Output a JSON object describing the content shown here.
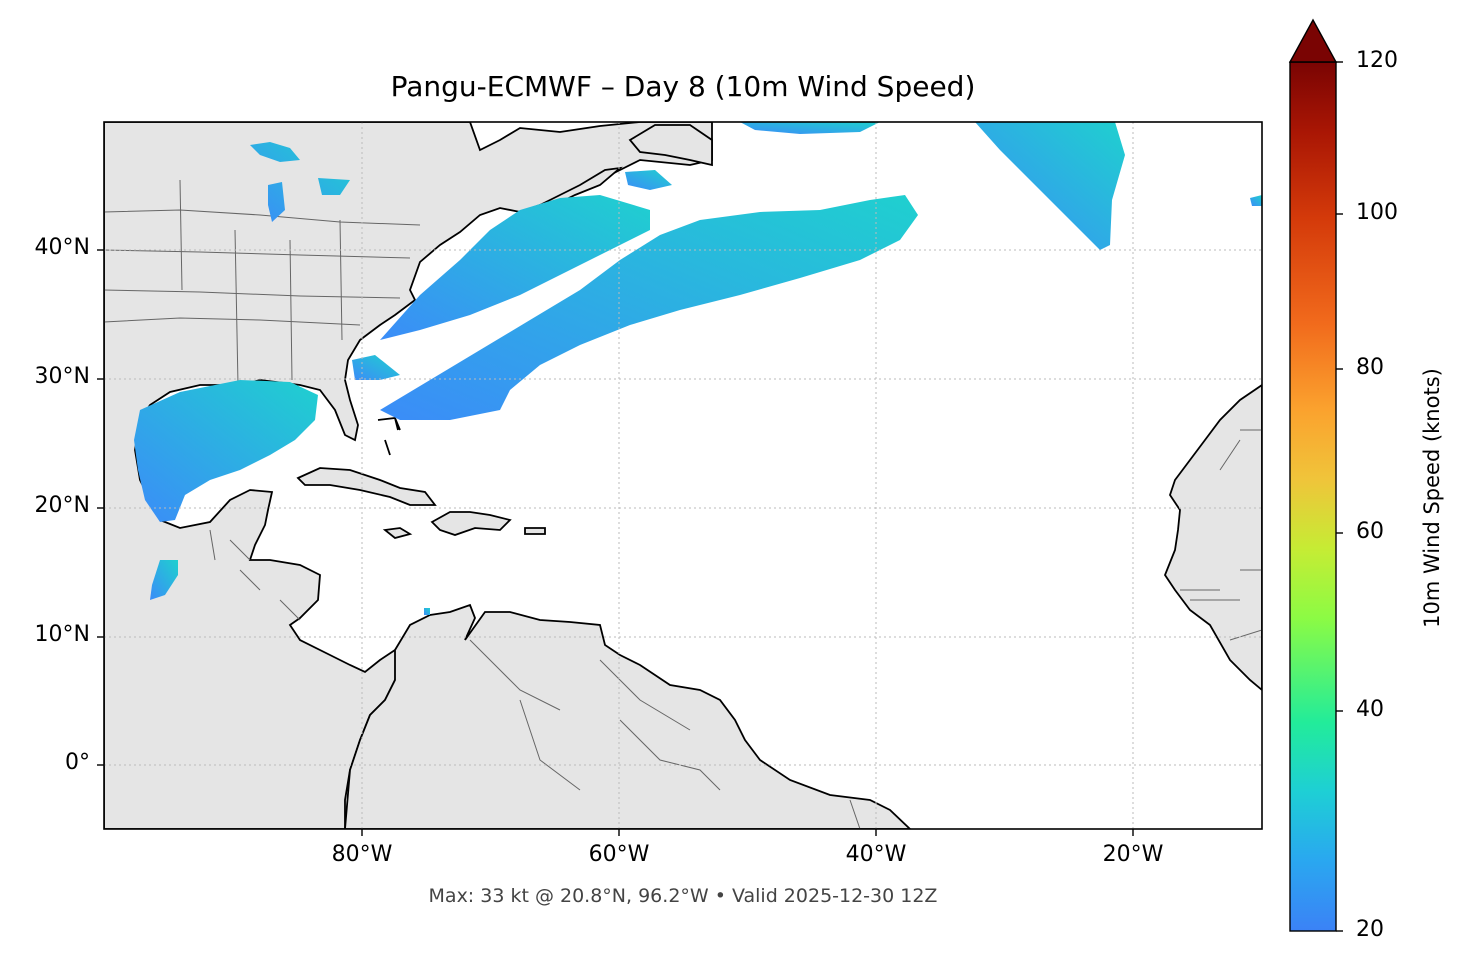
{
  "title": "Pangu-ECMWF – Day 8 (10m Wind Speed)",
  "footer": "Max: 33 kt @ 20.8°N, 96.2°W • Valid 2025-12-30 12Z",
  "map": {
    "lon_range": [
      -100,
      -10
    ],
    "lat_range": [
      -5,
      50
    ],
    "lat_ticks": [
      {
        "value": 40,
        "label": "40°N"
      },
      {
        "value": 30,
        "label": "30°N"
      },
      {
        "value": 20,
        "label": "20°N"
      },
      {
        "value": 10,
        "label": "10°N"
      },
      {
        "value": 0,
        "label": "0°"
      }
    ],
    "lon_ticks": [
      {
        "value": -80,
        "label": "80°W"
      },
      {
        "value": -60,
        "label": "60°W"
      },
      {
        "value": -40,
        "label": "40°W"
      },
      {
        "value": -20,
        "label": "20°W"
      }
    ],
    "gridlines": true,
    "land_color": "#e5e5e5",
    "ocean_color": "#ffffff",
    "coast_color": "#000000",
    "border_color": "#666666"
  },
  "colorbar": {
    "label": "10m Wind Speed (knots)",
    "min": 20,
    "max": 120,
    "extend": "max",
    "colormap": "turbo",
    "ticks": [
      {
        "value": 20,
        "label": "20"
      },
      {
        "value": 40,
        "label": "40"
      },
      {
        "value": 60,
        "label": "60"
      },
      {
        "value": 80,
        "label": "80"
      },
      {
        "value": 100,
        "label": "100"
      },
      {
        "value": 120,
        "label": "120"
      }
    ]
  }
}
